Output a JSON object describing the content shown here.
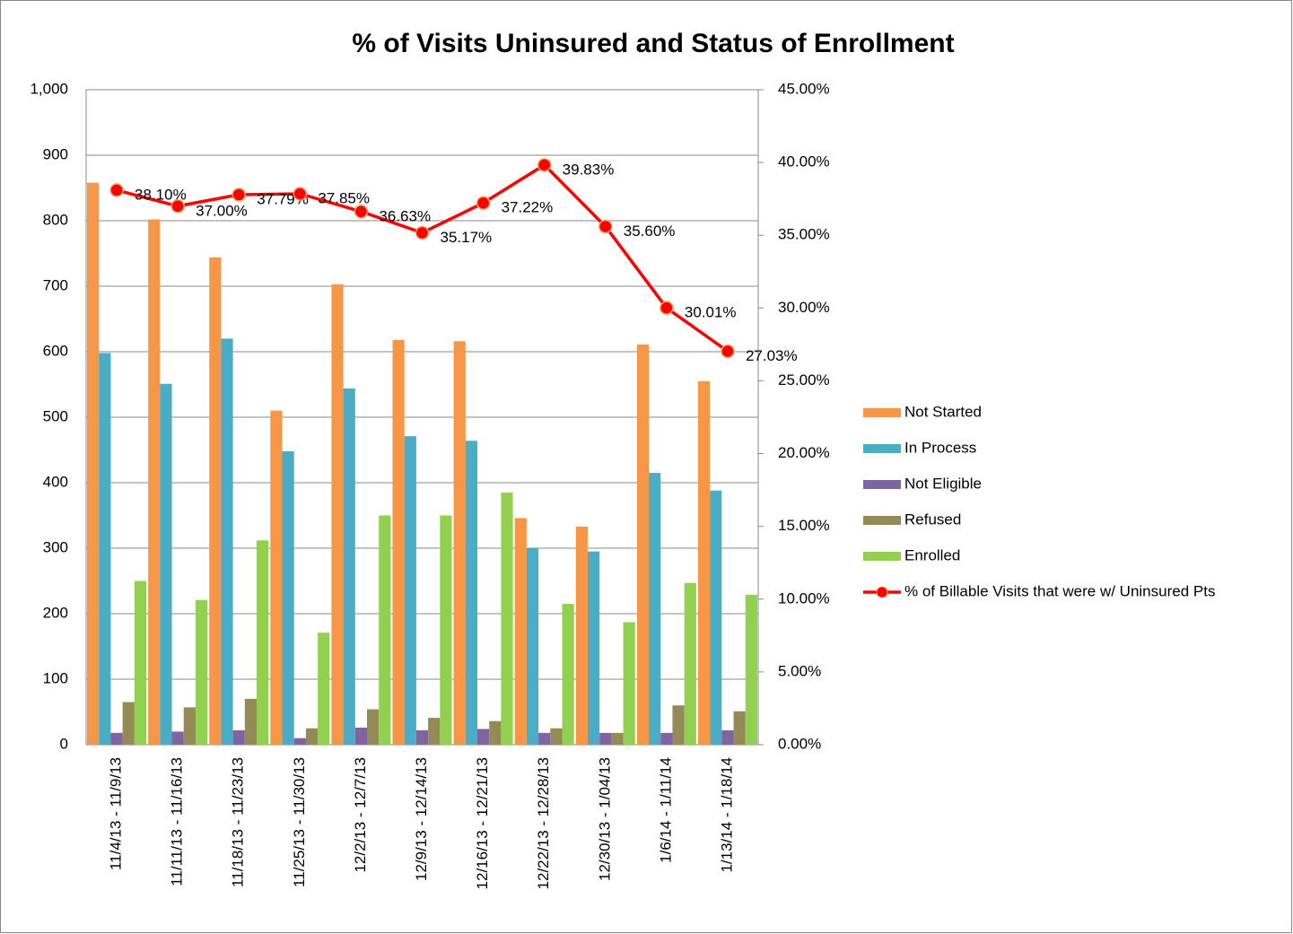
{
  "chart_data": {
    "type": "bar",
    "title": "% of Visits Uninsured and Status of Enrollment",
    "categories": [
      "11/4/13 - 11/9/13",
      "11/11/13 - 11/16/13",
      "11/18/13 - 11/23/13",
      "11/25/13 - 11/30/13",
      "12/2/13 - 12/7/13",
      "12/9/13 - 12/14/13",
      "12/16/13 - 12/21/13",
      "12/22/13 - 12/28/13",
      "12/30/13 - 1/04/13",
      "1/6/14 - 1/11/14",
      "1/13/14 - 1/18/14"
    ],
    "series": [
      {
        "name": "Not Started",
        "color": "#f79646",
        "values": [
          858,
          802,
          744,
          510,
          703,
          618,
          616,
          346,
          333,
          611,
          555
        ]
      },
      {
        "name": "In Process",
        "color": "#4bacc6",
        "values": [
          598,
          551,
          620,
          448,
          544,
          471,
          464,
          300,
          295,
          415,
          388
        ]
      },
      {
        "name": "Not Eligible",
        "color": "#8064a2",
        "values": [
          18,
          20,
          22,
          10,
          26,
          22,
          24,
          18,
          18,
          18,
          22
        ]
      },
      {
        "name": "Refused",
        "color": "#948a54",
        "values": [
          65,
          57,
          70,
          25,
          54,
          41,
          36,
          25,
          18,
          60,
          51
        ]
      },
      {
        "name": "Enrolled",
        "color": "#92d050",
        "values": [
          250,
          221,
          312,
          171,
          350,
          350,
          385,
          215,
          187,
          247,
          229
        ]
      },
      {
        "name": "% of Billable Visits that were w/ Uninsured Pts",
        "color": "#ff0000",
        "type": "line",
        "axis": "y2",
        "values": [
          38.1,
          37.0,
          37.79,
          37.85,
          36.63,
          35.17,
          37.22,
          39.83,
          35.6,
          30.01,
          27.03
        ],
        "value_labels": [
          "38.10%",
          "37.00%",
          "37.79%",
          "37.85%",
          "36.63%",
          "35.17%",
          "37.22%",
          "39.83%",
          "35.60%",
          "30.01%",
          "27.03%"
        ]
      }
    ],
    "ylim": [
      0,
      1000
    ],
    "yticks": [
      0,
      100,
      200,
      300,
      400,
      500,
      600,
      700,
      800,
      900,
      {
        "value": 1000,
        "label": "1,000"
      }
    ],
    "y2lim": [
      0,
      45
    ],
    "y2ticks": [
      {
        "value": 0,
        "label": "0.00%"
      },
      {
        "value": 5,
        "label": "5.00%"
      },
      {
        "value": 10,
        "label": "10.00%"
      },
      {
        "value": 15,
        "label": "15.00%"
      },
      {
        "value": 20,
        "label": "20.00%"
      },
      {
        "value": 25,
        "label": "25.00%"
      },
      {
        "value": 30,
        "label": "30.00%"
      },
      {
        "value": 35,
        "label": "35.00%"
      },
      {
        "value": 40,
        "label": "40.00%"
      },
      {
        "value": 45,
        "label": "45.00%"
      }
    ],
    "grid": true,
    "legend": "right"
  }
}
